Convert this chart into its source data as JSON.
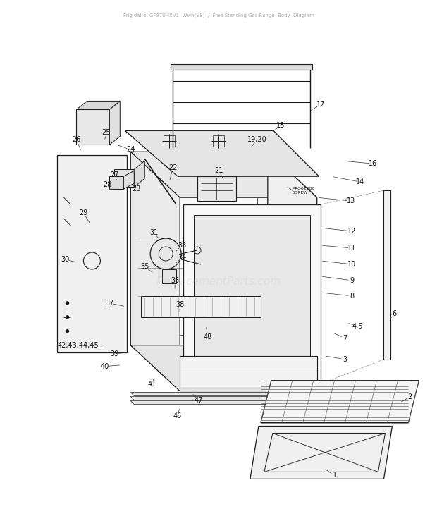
{
  "bg_color": "#ffffff",
  "line_color": "#1a1a1a",
  "figsize": [
    6.2,
    7.22
  ],
  "dpi": 100,
  "watermark": "ReplacementParts.com",
  "watermark_alpha": 0.18,
  "watermark_fontsize": 11,
  "header_text": "Frigidaire  GF970HXV1  Wwh(V8)  /  Free Standing Gas Range  Body  Diagram",
  "header_color": "#aaaaaa",
  "header_fontsize": 5.0,
  "label_fontsize": 7.0,
  "label_color": "#111111",
  "note_text": "APO61086\nSCREW",
  "note_fontsize": 4.5,
  "note_color": "#222222"
}
